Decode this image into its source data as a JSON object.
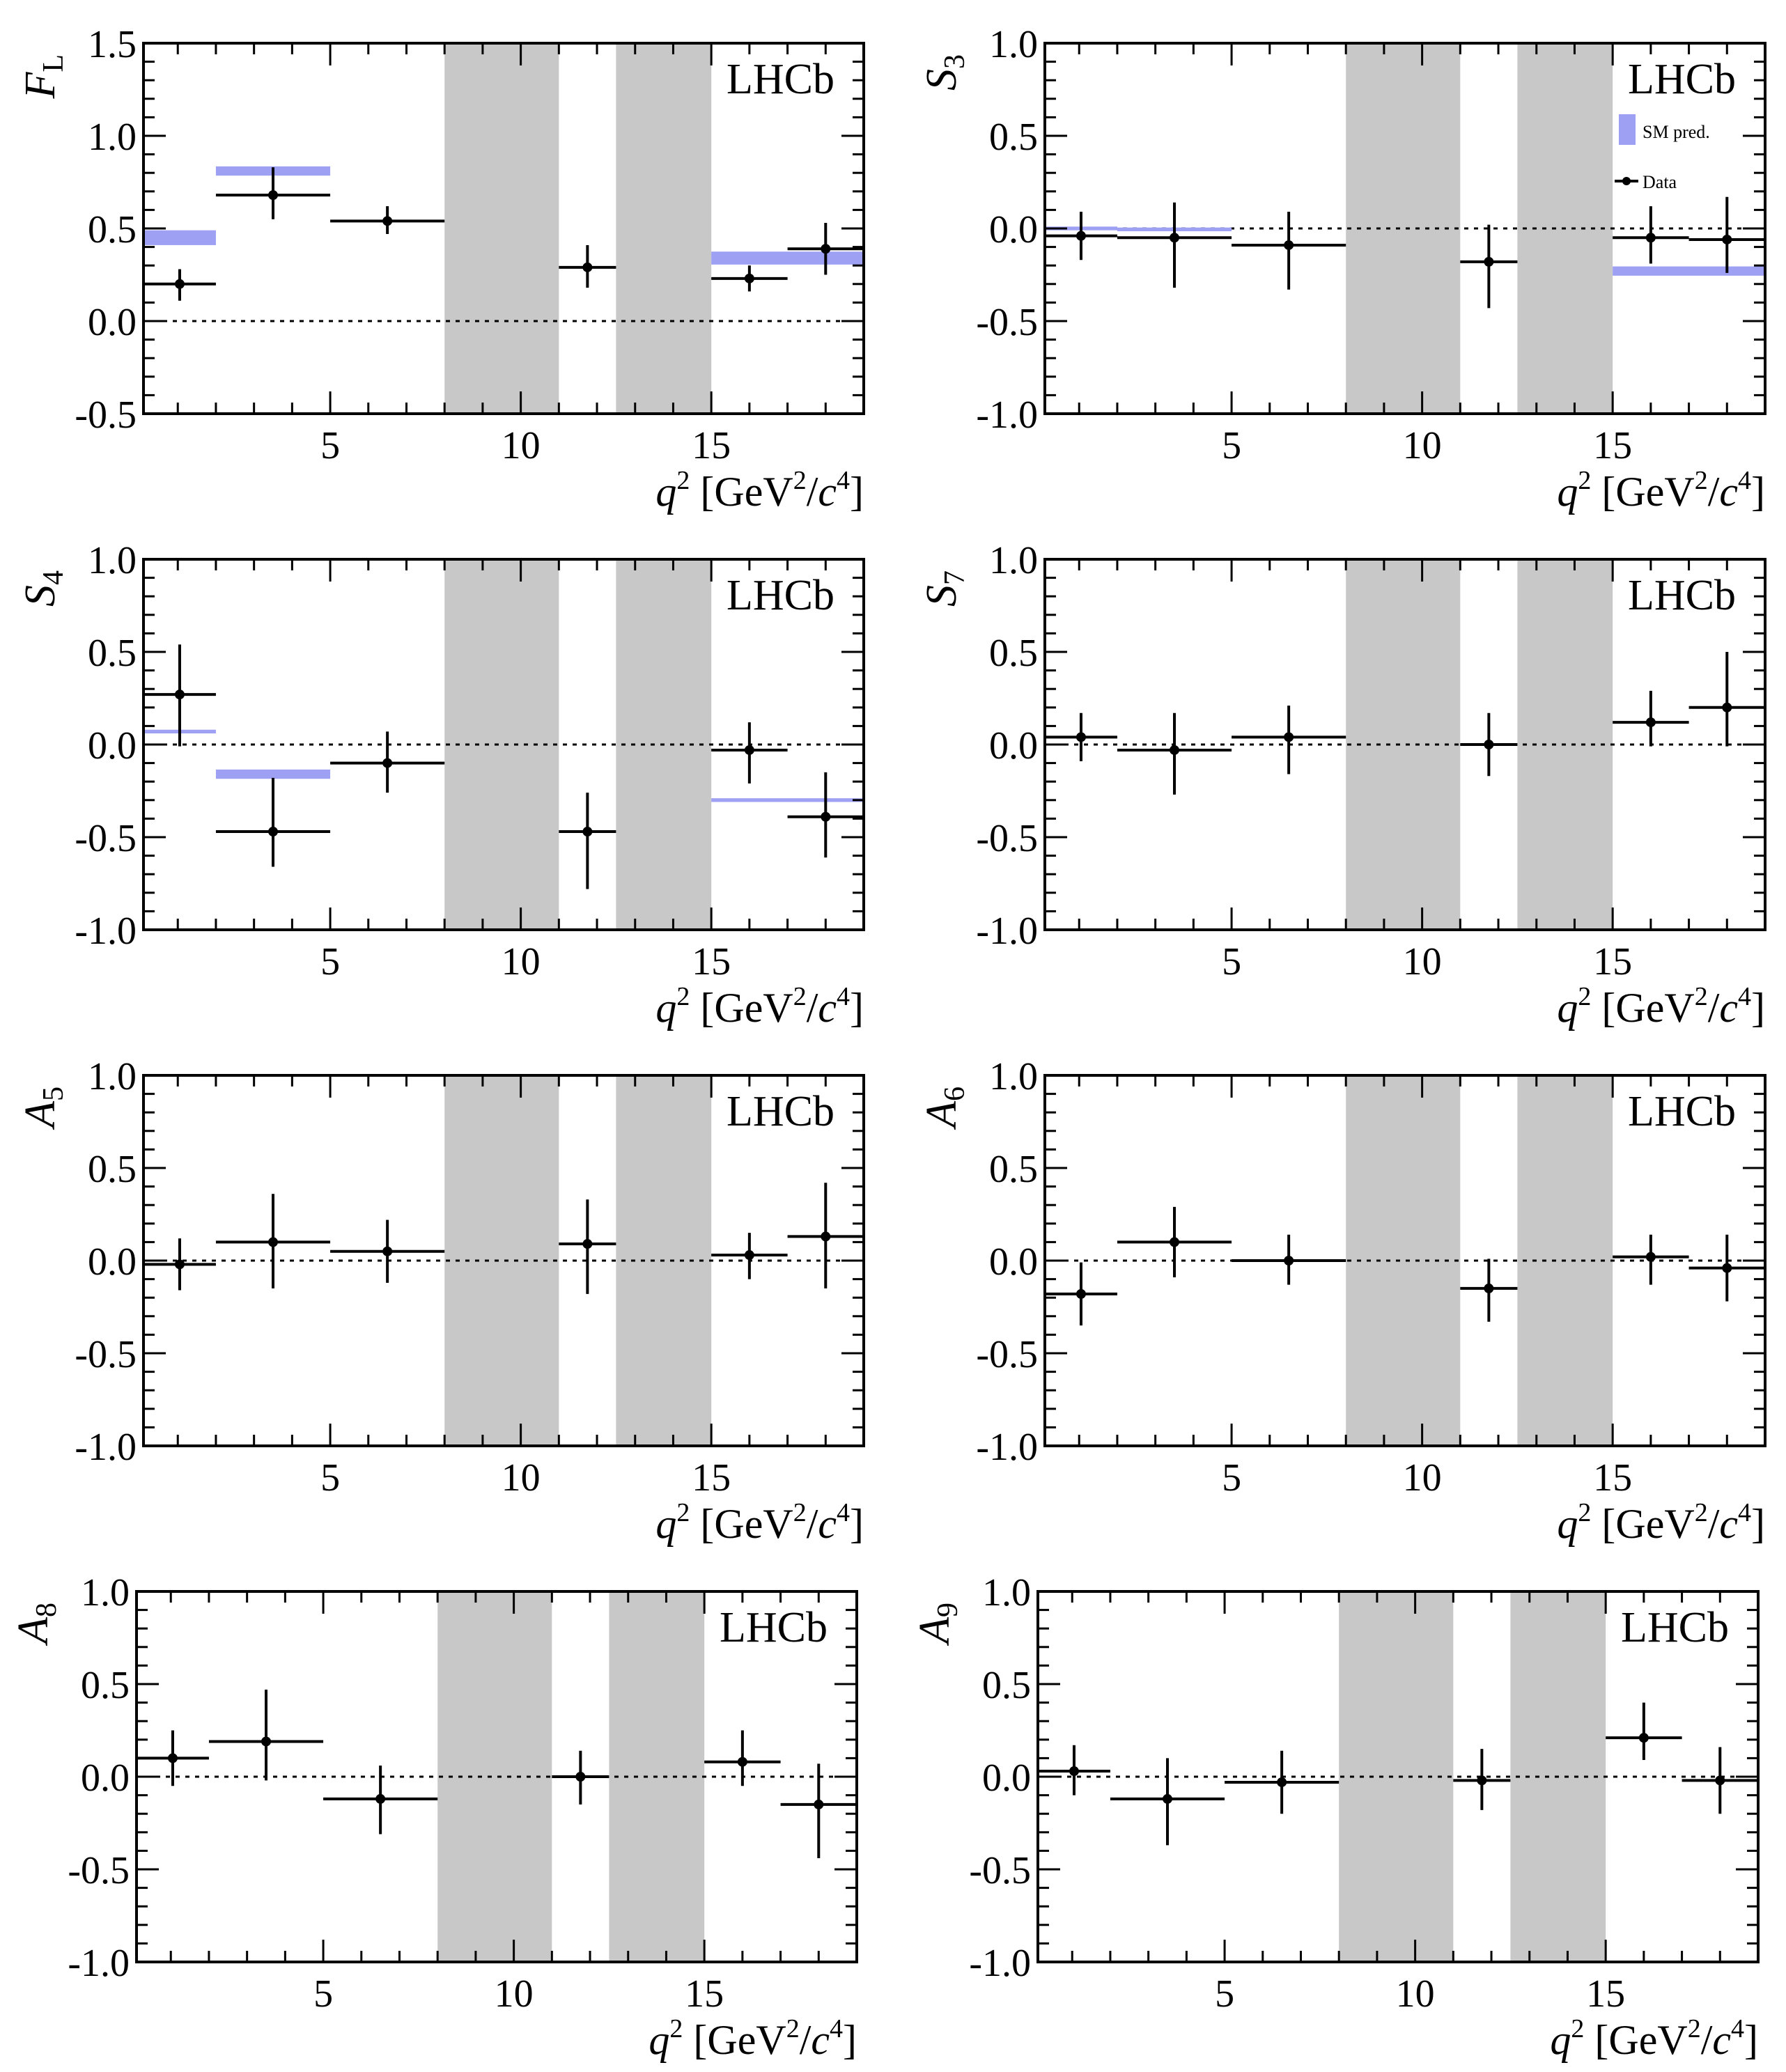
{
  "figure": {
    "experiment_label": "LHCb",
    "legend": {
      "sm_label": "SM pred.",
      "data_label": "Data"
    },
    "colors": {
      "sm_band": "#9ea0f4",
      "veto_band": "#c8c8c8",
      "data": "#000000",
      "axis": "#000000"
    }
  },
  "chart_data": [
    {
      "type": "scatter",
      "id": "FL",
      "ylabel_main": "F",
      "ylabel_sub": "L",
      "xlabel": {
        "var": "q",
        "power": "2",
        "unit_open": " [GeV",
        "unit_power": "2",
        "unit_slash": "/",
        "unit_c": "c",
        "unit_c_power": "4",
        "unit_close": "]"
      },
      "xlim": [
        0.1,
        19.0
      ],
      "ylim": [
        -0.5,
        1.5
      ],
      "yticks": [
        "-0.5",
        "0.0",
        "0.5",
        "1.0",
        "1.5"
      ],
      "xticks": [
        "5",
        "10",
        "15"
      ],
      "veto_bands": [
        [
          8.0,
          11.0
        ],
        [
          12.5,
          15.0
        ]
      ],
      "legend": false,
      "sm_pred": [
        {
          "x": [
            0.1,
            2.0
          ],
          "y": 0.45,
          "err": 0.04
        },
        {
          "x": [
            2.0,
            5.0
          ],
          "y": 0.81,
          "err": 0.025
        },
        {
          "x": [
            15.0,
            19.0
          ],
          "y": 0.34,
          "err": 0.035
        }
      ],
      "data": [
        {
          "x": 1.05,
          "xerr": [
            0.1,
            2.0
          ],
          "y": 0.2,
          "yerr": [
            0.09,
            0.08
          ]
        },
        {
          "x": 3.5,
          "xerr": [
            2.0,
            5.0
          ],
          "y": 0.68,
          "yerr": [
            0.13,
            0.15
          ]
        },
        {
          "x": 6.5,
          "xerr": [
            5.0,
            8.0
          ],
          "y": 0.54,
          "yerr": [
            0.07,
            0.08
          ]
        },
        {
          "x": 11.75,
          "xerr": [
            11.0,
            12.5
          ],
          "y": 0.29,
          "yerr": [
            0.11,
            0.12
          ]
        },
        {
          "x": 16.0,
          "xerr": [
            15.0,
            17.0
          ],
          "y": 0.23,
          "yerr": [
            0.07,
            0.07
          ]
        },
        {
          "x": 18.0,
          "xerr": [
            17.0,
            19.0
          ],
          "y": 0.39,
          "yerr": [
            0.14,
            0.14
          ]
        }
      ]
    },
    {
      "type": "scatter",
      "id": "S3",
      "ylabel_main": "S",
      "ylabel_sub": "3",
      "xlabel": {
        "var": "q",
        "power": "2",
        "unit_open": " [GeV",
        "unit_power": "2",
        "unit_slash": "/",
        "unit_c": "c",
        "unit_c_power": "4",
        "unit_close": "]"
      },
      "xlim": [
        0.1,
        19.0
      ],
      "ylim": [
        -1.0,
        1.0
      ],
      "yticks": [
        "-1.0",
        "-0.5",
        "0.0",
        "0.5",
        "1.0"
      ],
      "xticks": [
        "5",
        "10",
        "15"
      ],
      "veto_bands": [
        [
          8.0,
          11.0
        ],
        [
          12.5,
          15.0
        ]
      ],
      "legend": true,
      "sm_pred": [
        {
          "x": [
            0.1,
            2.0
          ],
          "y": 0.0,
          "err": 0.01
        },
        {
          "x": [
            2.0,
            5.0
          ],
          "y": -0.005,
          "err": 0.01
        },
        {
          "x": [
            15.0,
            19.0
          ],
          "y": -0.23,
          "err": 0.025
        }
      ],
      "data": [
        {
          "x": 1.05,
          "xerr": [
            0.1,
            2.0
          ],
          "y": -0.04,
          "yerr": [
            0.13,
            0.13
          ]
        },
        {
          "x": 3.5,
          "xerr": [
            2.0,
            5.0
          ],
          "y": -0.05,
          "yerr": [
            0.27,
            0.19
          ]
        },
        {
          "x": 6.5,
          "xerr": [
            5.0,
            8.0
          ],
          "y": -0.09,
          "yerr": [
            0.24,
            0.18
          ]
        },
        {
          "x": 11.75,
          "xerr": [
            11.0,
            12.5
          ],
          "y": -0.18,
          "yerr": [
            0.25,
            0.2
          ]
        },
        {
          "x": 16.0,
          "xerr": [
            15.0,
            17.0
          ],
          "y": -0.05,
          "yerr": [
            0.14,
            0.17
          ]
        },
        {
          "x": 18.0,
          "xerr": [
            17.0,
            19.0
          ],
          "y": -0.06,
          "yerr": [
            0.18,
            0.23
          ]
        }
      ]
    },
    {
      "type": "scatter",
      "id": "S4",
      "ylabel_main": "S",
      "ylabel_sub": "4",
      "xlabel": {
        "var": "q",
        "power": "2",
        "unit_open": " [GeV",
        "unit_power": "2",
        "unit_slash": "/",
        "unit_c": "c",
        "unit_c_power": "4",
        "unit_close": "]"
      },
      "xlim": [
        0.1,
        19.0
      ],
      "ylim": [
        -1.0,
        1.0
      ],
      "yticks": [
        "-1.0",
        "-0.5",
        "0.0",
        "0.5",
        "1.0"
      ],
      "xticks": [
        "5",
        "10",
        "15"
      ],
      "veto_bands": [
        [
          8.0,
          11.0
        ],
        [
          12.5,
          15.0
        ]
      ],
      "legend": false,
      "sm_pred": [
        {
          "x": [
            0.1,
            2.0
          ],
          "y": 0.07,
          "err": 0.01
        },
        {
          "x": [
            2.0,
            5.0
          ],
          "y": -0.16,
          "err": 0.025
        },
        {
          "x": [
            15.0,
            19.0
          ],
          "y": -0.3,
          "err": 0.01
        }
      ],
      "data": [
        {
          "x": 1.05,
          "xerr": [
            0.1,
            2.0
          ],
          "y": 0.27,
          "yerr": [
            0.28,
            0.27
          ]
        },
        {
          "x": 3.5,
          "xerr": [
            2.0,
            5.0
          ],
          "y": -0.47,
          "yerr": [
            0.19,
            0.29
          ]
        },
        {
          "x": 6.5,
          "xerr": [
            5.0,
            8.0
          ],
          "y": -0.1,
          "yerr": [
            0.16,
            0.17
          ]
        },
        {
          "x": 11.75,
          "xerr": [
            11.0,
            12.5
          ],
          "y": -0.47,
          "yerr": [
            0.31,
            0.21
          ]
        },
        {
          "x": 16.0,
          "xerr": [
            15.0,
            17.0
          ],
          "y": -0.03,
          "yerr": [
            0.18,
            0.15
          ]
        },
        {
          "x": 18.0,
          "xerr": [
            17.0,
            19.0
          ],
          "y": -0.39,
          "yerr": [
            0.22,
            0.24
          ]
        }
      ]
    },
    {
      "type": "scatter",
      "id": "S7",
      "ylabel_main": "S",
      "ylabel_sub": "7",
      "xlabel": {
        "var": "q",
        "power": "2",
        "unit_open": " [GeV",
        "unit_power": "2",
        "unit_slash": "/",
        "unit_c": "c",
        "unit_c_power": "4",
        "unit_close": "]"
      },
      "xlim": [
        0.1,
        19.0
      ],
      "ylim": [
        -1.0,
        1.0
      ],
      "yticks": [
        "-1.0",
        "-0.5",
        "0.0",
        "0.5",
        "1.0"
      ],
      "xticks": [
        "5",
        "10",
        "15"
      ],
      "veto_bands": [
        [
          8.0,
          11.0
        ],
        [
          12.5,
          15.0
        ]
      ],
      "legend": false,
      "sm_pred": [],
      "data": [
        {
          "x": 1.05,
          "xerr": [
            0.1,
            2.0
          ],
          "y": 0.04,
          "yerr": [
            0.13,
            0.13
          ]
        },
        {
          "x": 3.5,
          "xerr": [
            2.0,
            5.0
          ],
          "y": -0.03,
          "yerr": [
            0.24,
            0.2
          ]
        },
        {
          "x": 6.5,
          "xerr": [
            5.0,
            8.0
          ],
          "y": 0.04,
          "yerr": [
            0.2,
            0.17
          ]
        },
        {
          "x": 11.75,
          "xerr": [
            11.0,
            12.5
          ],
          "y": 0.0,
          "yerr": [
            0.17,
            0.17
          ]
        },
        {
          "x": 16.0,
          "xerr": [
            15.0,
            17.0
          ],
          "y": 0.12,
          "yerr": [
            0.13,
            0.17
          ]
        },
        {
          "x": 18.0,
          "xerr": [
            17.0,
            19.0
          ],
          "y": 0.2,
          "yerr": [
            0.21,
            0.3
          ]
        }
      ]
    },
    {
      "type": "scatter",
      "id": "A5",
      "ylabel_main": "A",
      "ylabel_sub": "5",
      "xlabel": {
        "var": "q",
        "power": "2",
        "unit_open": " [GeV",
        "unit_power": "2",
        "unit_slash": "/",
        "unit_c": "c",
        "unit_c_power": "4",
        "unit_close": "]"
      },
      "xlim": [
        0.1,
        19.0
      ],
      "ylim": [
        -1.0,
        1.0
      ],
      "yticks": [
        "-1.0",
        "-0.5",
        "0.0",
        "0.5",
        "1.0"
      ],
      "xticks": [
        "5",
        "10",
        "15"
      ],
      "veto_bands": [
        [
          8.0,
          11.0
        ],
        [
          12.5,
          15.0
        ]
      ],
      "legend": false,
      "sm_pred": [],
      "data": [
        {
          "x": 1.05,
          "xerr": [
            0.1,
            2.0
          ],
          "y": -0.02,
          "yerr": [
            0.14,
            0.14
          ]
        },
        {
          "x": 3.5,
          "xerr": [
            2.0,
            5.0
          ],
          "y": 0.1,
          "yerr": [
            0.25,
            0.26
          ]
        },
        {
          "x": 6.5,
          "xerr": [
            5.0,
            8.0
          ],
          "y": 0.05,
          "yerr": [
            0.17,
            0.17
          ]
        },
        {
          "x": 11.75,
          "xerr": [
            11.0,
            12.5
          ],
          "y": 0.09,
          "yerr": [
            0.27,
            0.24
          ]
        },
        {
          "x": 16.0,
          "xerr": [
            15.0,
            17.0
          ],
          "y": 0.03,
          "yerr": [
            0.13,
            0.12
          ]
        },
        {
          "x": 18.0,
          "xerr": [
            17.0,
            19.0
          ],
          "y": 0.13,
          "yerr": [
            0.28,
            0.29
          ]
        }
      ]
    },
    {
      "type": "scatter",
      "id": "A6",
      "ylabel_main": "A",
      "ylabel_sub": "6",
      "xlabel": {
        "var": "q",
        "power": "2",
        "unit_open": " [GeV",
        "unit_power": "2",
        "unit_slash": "/",
        "unit_c": "c",
        "unit_c_power": "4",
        "unit_close": "]"
      },
      "xlim": [
        0.1,
        19.0
      ],
      "ylim": [
        -1.0,
        1.0
      ],
      "yticks": [
        "-1.0",
        "-0.5",
        "0.0",
        "0.5",
        "1.0"
      ],
      "xticks": [
        "5",
        "10",
        "15"
      ],
      "veto_bands": [
        [
          8.0,
          11.0
        ],
        [
          12.5,
          15.0
        ]
      ],
      "legend": false,
      "sm_pred": [],
      "data": [
        {
          "x": 1.05,
          "xerr": [
            0.1,
            2.0
          ],
          "y": -0.18,
          "yerr": [
            0.17,
            0.17
          ]
        },
        {
          "x": 3.5,
          "xerr": [
            2.0,
            5.0
          ],
          "y": 0.1,
          "yerr": [
            0.19,
            0.19
          ]
        },
        {
          "x": 6.5,
          "xerr": [
            5.0,
            8.0
          ],
          "y": 0.0,
          "yerr": [
            0.13,
            0.14
          ]
        },
        {
          "x": 11.75,
          "xerr": [
            11.0,
            12.5
          ],
          "y": -0.15,
          "yerr": [
            0.18,
            0.16
          ]
        },
        {
          "x": 16.0,
          "xerr": [
            15.0,
            17.0
          ],
          "y": 0.02,
          "yerr": [
            0.15,
            0.12
          ]
        },
        {
          "x": 18.0,
          "xerr": [
            17.0,
            19.0
          ],
          "y": -0.04,
          "yerr": [
            0.18,
            0.18
          ]
        }
      ]
    },
    {
      "type": "scatter",
      "id": "A8",
      "ylabel_main": "A",
      "ylabel_sub": "8",
      "xlabel": {
        "var": "q",
        "power": "2",
        "unit_open": " [GeV",
        "unit_power": "2",
        "unit_slash": "/",
        "unit_c": "c",
        "unit_c_power": "4",
        "unit_close": "]"
      },
      "xlim": [
        0.1,
        19.0
      ],
      "ylim": [
        -1.0,
        1.0
      ],
      "yticks": [
        "-1.0",
        "-0.5",
        "0.0",
        "0.5",
        "1.0"
      ],
      "xticks": [
        "5",
        "10",
        "15"
      ],
      "veto_bands": [
        [
          8.0,
          11.0
        ],
        [
          12.5,
          15.0
        ]
      ],
      "legend": false,
      "sm_pred": [],
      "data": [
        {
          "x": 1.05,
          "xerr": [
            0.1,
            2.0
          ],
          "y": 0.1,
          "yerr": [
            0.15,
            0.15
          ]
        },
        {
          "x": 3.5,
          "xerr": [
            2.0,
            5.0
          ],
          "y": 0.19,
          "yerr": [
            0.21,
            0.28
          ]
        },
        {
          "x": 6.5,
          "xerr": [
            5.0,
            8.0
          ],
          "y": -0.12,
          "yerr": [
            0.19,
            0.18
          ]
        },
        {
          "x": 11.75,
          "xerr": [
            11.0,
            12.5
          ],
          "y": 0.0,
          "yerr": [
            0.15,
            0.14
          ]
        },
        {
          "x": 16.0,
          "xerr": [
            15.0,
            17.0
          ],
          "y": 0.08,
          "yerr": [
            0.13,
            0.17
          ]
        },
        {
          "x": 18.0,
          "xerr": [
            17.0,
            19.0
          ],
          "y": -0.15,
          "yerr": [
            0.29,
            0.22
          ]
        }
      ]
    },
    {
      "type": "scatter",
      "id": "A9",
      "ylabel_main": "A",
      "ylabel_sub": "9",
      "xlabel": {
        "var": "q",
        "power": "2",
        "unit_open": " [GeV",
        "unit_power": "2",
        "unit_slash": "/",
        "unit_c": "c",
        "unit_c_power": "4",
        "unit_close": "]"
      },
      "xlim": [
        0.1,
        19.0
      ],
      "ylim": [
        -1.0,
        1.0
      ],
      "yticks": [
        "-1.0",
        "-0.5",
        "0.0",
        "0.5",
        "1.0"
      ],
      "xticks": [
        "5",
        "10",
        "15"
      ],
      "veto_bands": [
        [
          8.0,
          11.0
        ],
        [
          12.5,
          15.0
        ]
      ],
      "legend": false,
      "sm_pred": [],
      "data": [
        {
          "x": 1.05,
          "xerr": [
            0.1,
            2.0
          ],
          "y": 0.03,
          "yerr": [
            0.13,
            0.14
          ]
        },
        {
          "x": 3.5,
          "xerr": [
            2.0,
            5.0
          ],
          "y": -0.12,
          "yerr": [
            0.25,
            0.22
          ]
        },
        {
          "x": 6.5,
          "xerr": [
            5.0,
            8.0
          ],
          "y": -0.03,
          "yerr": [
            0.17,
            0.17
          ]
        },
        {
          "x": 11.75,
          "xerr": [
            11.0,
            12.5
          ],
          "y": -0.02,
          "yerr": [
            0.16,
            0.17
          ]
        },
        {
          "x": 16.0,
          "xerr": [
            15.0,
            17.0
          ],
          "y": 0.21,
          "yerr": [
            0.12,
            0.19
          ]
        },
        {
          "x": 18.0,
          "xerr": [
            17.0,
            19.0
          ],
          "y": -0.02,
          "yerr": [
            0.18,
            0.18
          ]
        }
      ]
    }
  ]
}
